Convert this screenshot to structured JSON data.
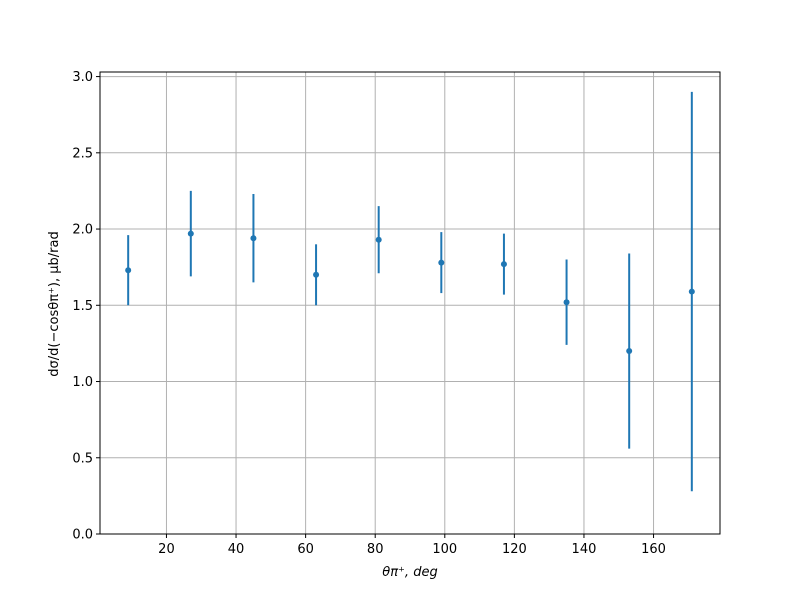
{
  "chart_data": {
    "type": "errorbar",
    "xlabel": "θπ⁺, deg",
    "ylabel": "dσ/d(−cosθπ⁺), μb/rad",
    "x": [
      9,
      27,
      45,
      63,
      81,
      99,
      117,
      135,
      153,
      171
    ],
    "values": [
      1.73,
      1.97,
      1.94,
      1.7,
      1.93,
      1.78,
      1.77,
      1.52,
      1.2,
      1.59
    ],
    "errors": [
      0.23,
      0.28,
      0.29,
      0.2,
      0.22,
      0.2,
      0.2,
      0.28,
      0.64,
      1.31
    ],
    "color": "#1f77b4",
    "xlim": [
      0.9,
      179.1
    ],
    "xticks": [
      20,
      40,
      60,
      80,
      100,
      120,
      140,
      160
    ],
    "ylim": [
      0,
      3.03
    ],
    "yticks": [
      {
        "value": 0,
        "label": "0.0"
      },
      {
        "value": 0.5,
        "label": "0.5"
      },
      {
        "value": 1,
        "label": "1.0"
      },
      {
        "value": 1.5,
        "label": "1.5"
      },
      {
        "value": 2,
        "label": "2.0"
      },
      {
        "value": 2.5,
        "label": "2.5"
      },
      {
        "value": 3,
        "label": "3.0"
      }
    ],
    "grid": true
  }
}
